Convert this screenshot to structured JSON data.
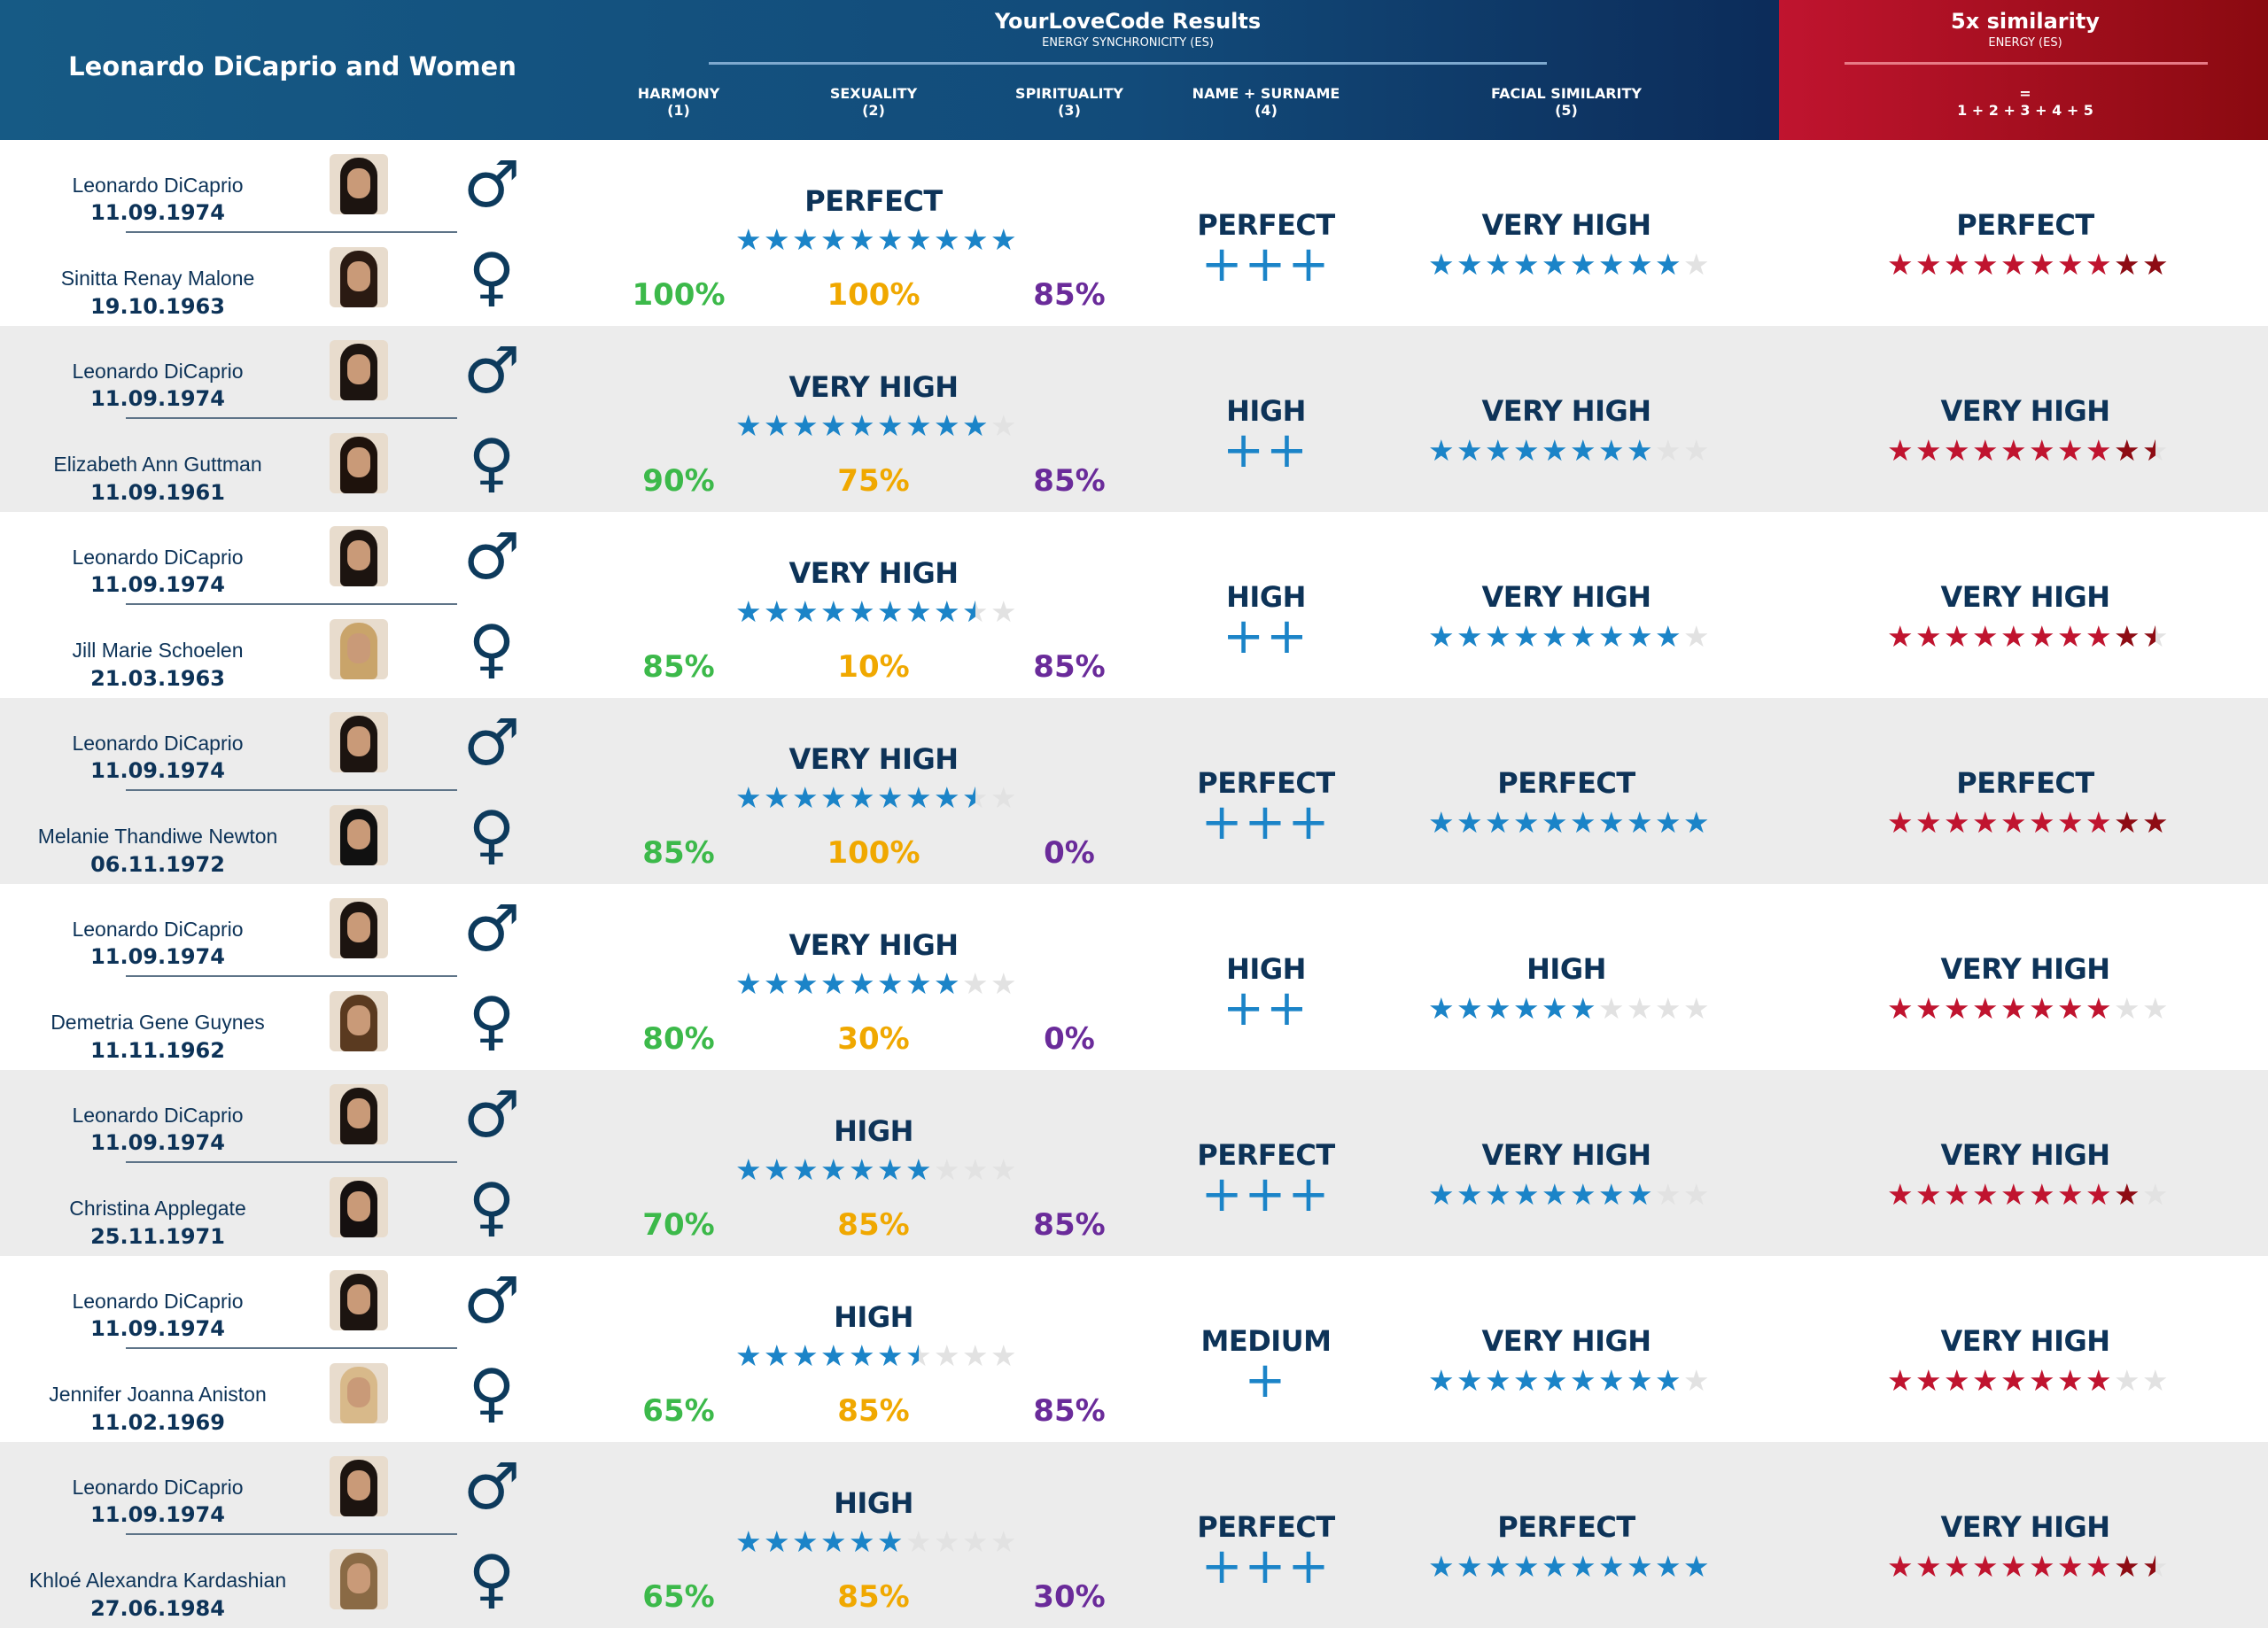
{
  "header": {
    "title": "Leonardo DiCaprio and Women",
    "results_title": "YourLoveCode Results",
    "results_subtitle": "ENERGY SYNCHRONICITY (ES)",
    "columns": [
      {
        "label": "HARMONY",
        "num": "(1)"
      },
      {
        "label": "SEXUALITY",
        "num": "(2)"
      },
      {
        "label": "SPIRITUALITY",
        "num": "(3)"
      },
      {
        "label": "NAME + SURNAME",
        "num": "(4)"
      },
      {
        "label": "FACIAL SIMILARITY",
        "num": "(5)"
      }
    ],
    "similarity_title": "5x similarity",
    "similarity_subtitle": "ENERGY (ES)",
    "similarity_eq": "=",
    "similarity_formula": "1 + 2 + 3 + 4 + 5"
  },
  "colors": {
    "harmony": "#3cb94a",
    "sexuality": "#f0a800",
    "spirituality": "#6a2b9a",
    "blue_star": "#1b84c8",
    "red_star": "#c0142f",
    "navy": "#0d3358"
  },
  "icons": {
    "male": "male-symbol-icon",
    "female": "female-symbol-icon"
  },
  "rows": [
    {
      "man": {
        "name": "Leonardo DiCaprio",
        "date": "11.09.1974"
      },
      "woman": {
        "name": "Sinitta Renay Malone",
        "date": "19.10.1963"
      },
      "es_label": "PERFECT",
      "es_stars": 10,
      "harmony": "100%",
      "sexuality": "100%",
      "spirituality": "85%",
      "name_label": "PERFECT",
      "name_plus": "+++",
      "facial_label": "VERY HIGH",
      "facial_stars": 9,
      "total_label": "PERFECT",
      "total_stars": 10
    },
    {
      "man": {
        "name": "Leonardo DiCaprio",
        "date": "11.09.1974"
      },
      "woman": {
        "name": "Elizabeth Ann Guttman",
        "date": "11.09.1961"
      },
      "es_label": "VERY HIGH",
      "es_stars": 9,
      "harmony": "90%",
      "sexuality": "75%",
      "spirituality": "85%",
      "name_label": "HIGH",
      "name_plus": "++",
      "facial_label": "VERY HIGH",
      "facial_stars": 8,
      "total_label": "VERY HIGH",
      "total_stars": 9.5
    },
    {
      "man": {
        "name": "Leonardo DiCaprio",
        "date": "11.09.1974"
      },
      "woman": {
        "name": "Jill Marie Schoelen",
        "date": "21.03.1963"
      },
      "es_label": "VERY HIGH",
      "es_stars": 8.5,
      "harmony": "85%",
      "sexuality": "10%",
      "spirituality": "85%",
      "name_label": "HIGH",
      "name_plus": "++",
      "facial_label": "VERY HIGH",
      "facial_stars": 9,
      "total_label": "VERY HIGH",
      "total_stars": 9.5
    },
    {
      "man": {
        "name": "Leonardo DiCaprio",
        "date": "11.09.1974"
      },
      "woman": {
        "name": "Melanie Thandiwe Newton",
        "date": "06.11.1972"
      },
      "es_label": "VERY HIGH",
      "es_stars": 8.5,
      "harmony": "85%",
      "sexuality": "100%",
      "spirituality": "0%",
      "name_label": "PERFECT",
      "name_plus": "+++",
      "facial_label": "PERFECT",
      "facial_stars": 10,
      "total_label": "PERFECT",
      "total_stars": 10
    },
    {
      "man": {
        "name": "Leonardo DiCaprio",
        "date": "11.09.1974"
      },
      "woman": {
        "name": "Demetria Gene Guynes",
        "date": "11.11.1962"
      },
      "es_label": "VERY HIGH",
      "es_stars": 8,
      "harmony": "80%",
      "sexuality": "30%",
      "spirituality": "0%",
      "name_label": "HIGH",
      "name_plus": "++",
      "facial_label": "HIGH",
      "facial_stars": 6,
      "total_label": "VERY HIGH",
      "total_stars": 8
    },
    {
      "man": {
        "name": "Leonardo DiCaprio",
        "date": "11.09.1974"
      },
      "woman": {
        "name": "Christina Applegate",
        "date": "25.11.1971"
      },
      "es_label": "HIGH",
      "es_stars": 7,
      "harmony": "70%",
      "sexuality": "85%",
      "spirituality": "85%",
      "name_label": "PERFECT",
      "name_plus": "+++",
      "facial_label": "VERY HIGH",
      "facial_stars": 8,
      "total_label": "VERY HIGH",
      "total_stars": 9
    },
    {
      "man": {
        "name": "Leonardo DiCaprio",
        "date": "11.09.1974"
      },
      "woman": {
        "name": "Jennifer Joanna Aniston",
        "date": "11.02.1969"
      },
      "es_label": "HIGH",
      "es_stars": 6.5,
      "harmony": "65%",
      "sexuality": "85%",
      "spirituality": "85%",
      "name_label": "MEDIUM",
      "name_plus": "+",
      "facial_label": "VERY HIGH",
      "facial_stars": 9,
      "total_label": "VERY HIGH",
      "total_stars": 8
    },
    {
      "man": {
        "name": "Leonardo DiCaprio",
        "date": "11.09.1974"
      },
      "woman": {
        "name": "Khloé Alexandra Kardashian",
        "date": "27.06.1984"
      },
      "es_label": "HIGH",
      "es_stars": 6,
      "harmony": "65%",
      "sexuality": "85%",
      "spirituality": "30%",
      "name_label": "PERFECT",
      "name_plus": "+++",
      "facial_label": "PERFECT",
      "facial_stars": 10,
      "total_label": "VERY HIGH",
      "total_stars": 9.5
    }
  ]
}
